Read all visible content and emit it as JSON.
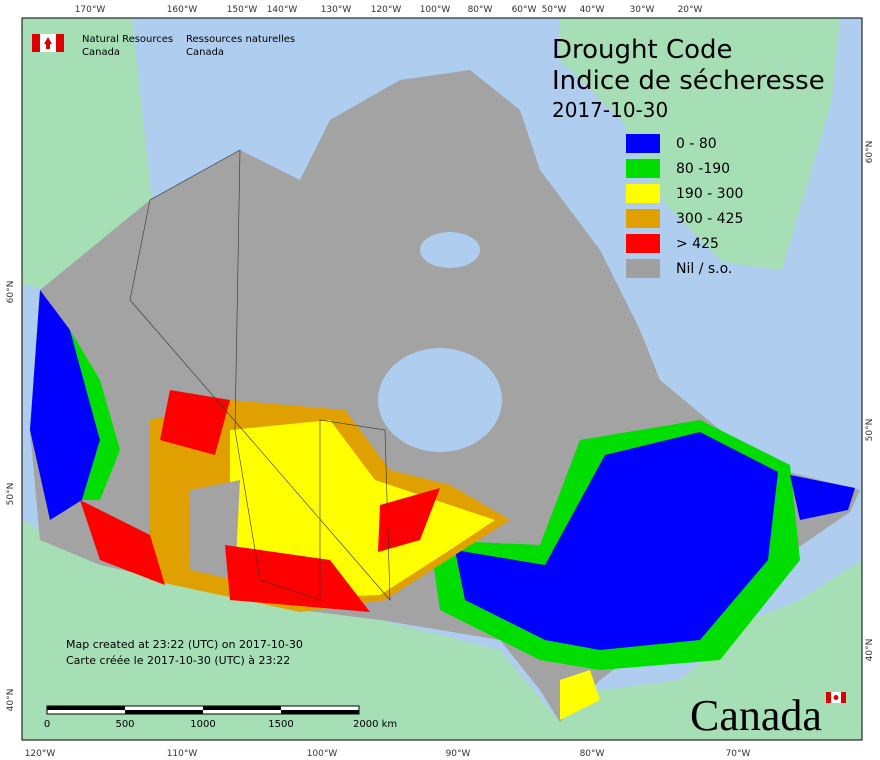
{
  "header": {
    "org_en": [
      "Natural Resources",
      "Canada"
    ],
    "org_fr": [
      "Ressources naturelles",
      "Canada"
    ]
  },
  "title": {
    "en": "Drought Code",
    "fr": "Indice de sécheresse",
    "date": "2017-10-30"
  },
  "legend": [
    {
      "label": "0 - 80",
      "color": "#0000ff"
    },
    {
      "label": "80 -190",
      "color": "#00dd00"
    },
    {
      "label": "190 - 300",
      "color": "#ffff00"
    },
    {
      "label": "300 - 425",
      "color": "#e0a000"
    },
    {
      "label": "> 425",
      "color": "#ff0000"
    },
    {
      "label": "Nil / s.o.",
      "color": "#a0a0a0"
    }
  ],
  "graticule": {
    "top": [
      "170°W",
      "160°W",
      "150°W",
      "140°W",
      "130°W",
      "120°W",
      "100°W",
      "80°W",
      "60°W",
      "50°W",
      "40°W",
      "30°W",
      "20°W"
    ],
    "bottom": [
      "120°W",
      "110°W",
      "100°W",
      "90°W",
      "80°W",
      "70°W"
    ],
    "left": [
      "60°N",
      "50°N",
      "40°N"
    ],
    "right": [
      "60°N",
      "50°N",
      "40°N"
    ]
  },
  "credits": [
    "Map created at 23:22 (UTC) on 2017-10-30",
    "Carte créée le 2017-10-30 (UTC) à 23:22"
  ],
  "scale_bar": [
    "0",
    "500",
    "1000",
    "1500",
    "2000  km"
  ],
  "wordmark": "Canada"
}
